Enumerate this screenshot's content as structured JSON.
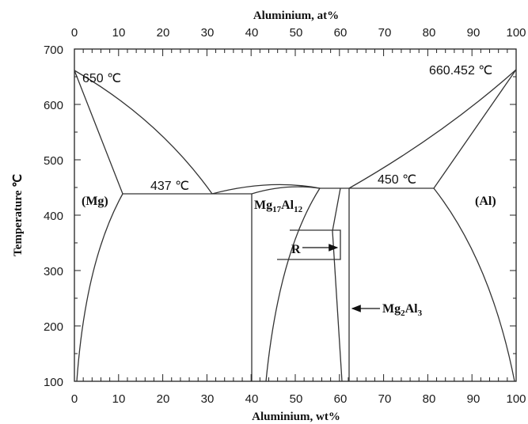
{
  "diagram": {
    "type": "phase-diagram",
    "top_axis": {
      "title": "Aluminium, at%",
      "ticks": [
        "0",
        "10",
        "20",
        "30",
        "40",
        "50",
        "60",
        "70",
        "80",
        "90",
        "100"
      ]
    },
    "bottom_axis": {
      "title": "Aluminium, wt%",
      "ticks": [
        "0",
        "10",
        "20",
        "30",
        "40",
        "50",
        "60",
        "70",
        "80",
        "90",
        "100"
      ]
    },
    "y_axis": {
      "title": "Temperature ℃",
      "ticks": [
        "700",
        "600",
        "500",
        "400",
        "300",
        "200",
        "100"
      ],
      "range": [
        100,
        700
      ]
    },
    "labels": {
      "mg_melt": "650 ℃",
      "al_melt": "660.452 ℃",
      "eutectic_mg": "437 ℃",
      "eutectic_al": "450 ℃",
      "phase_mg": "(Mg)",
      "phase_al": "(Al)",
      "phase_r": "R",
      "mg17_el1": "Mg",
      "mg17_n1": "17",
      "mg17_el2": "Al",
      "mg17_n2": "12",
      "mg2_el1": "Mg",
      "mg2_n1": "2",
      "mg2_el2": "Al",
      "mg2_n2": "3"
    }
  }
}
